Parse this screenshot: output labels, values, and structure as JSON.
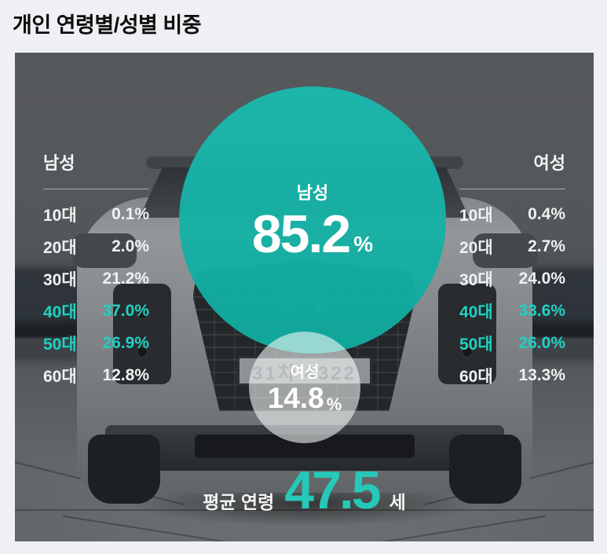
{
  "page": {
    "title": "개인 연령별/성별 비중"
  },
  "colors": {
    "accent_teal_text": "#1fd2c2",
    "male_circle_teal": "#14b1a5",
    "average_teal": "#25c8b9",
    "page_background": "#eef0f3"
  },
  "male": {
    "header": "남성",
    "rows": [
      {
        "age": "10대",
        "value": "0.1%",
        "highlight": false
      },
      {
        "age": "20대",
        "value": "2.0%",
        "highlight": false
      },
      {
        "age": "30대",
        "value": "21.2%",
        "highlight": false
      },
      {
        "age": "40대",
        "value": "37.0%",
        "highlight": true
      },
      {
        "age": "50대",
        "value": "26.9%",
        "highlight": true
      },
      {
        "age": "60대",
        "value": "12.8%",
        "highlight": false
      }
    ]
  },
  "female": {
    "header": "여성",
    "rows": [
      {
        "age": "10대",
        "value": "0.4%",
        "highlight": false
      },
      {
        "age": "20대",
        "value": "2.7%",
        "highlight": false
      },
      {
        "age": "30대",
        "value": "24.0%",
        "highlight": false
      },
      {
        "age": "40대",
        "value": "33.6%",
        "highlight": true
      },
      {
        "age": "50대",
        "value": "26.0%",
        "highlight": true
      },
      {
        "age": "60대",
        "value": "13.3%",
        "highlight": false
      }
    ]
  },
  "share": {
    "male_label": "남성",
    "male_value": "85.2",
    "male_unit": "%",
    "female_label": "여성",
    "female_value": "14.8",
    "female_unit": "%"
  },
  "average": {
    "label": "평균 연령",
    "value": "47.5",
    "unit": "세"
  },
  "scene": {
    "license_plate": "31차 4322"
  },
  "chart_data": {
    "type": "table",
    "title": "개인 연령별/성별 비중",
    "categories": [
      "10대",
      "20대",
      "30대",
      "40대",
      "50대",
      "60대"
    ],
    "series": [
      {
        "name": "남성",
        "values": [
          0.1,
          2.0,
          21.2,
          37.0,
          26.9,
          12.8
        ]
      },
      {
        "name": "여성",
        "values": [
          0.4,
          2.7,
          24.0,
          33.6,
          26.0,
          13.3
        ]
      }
    ],
    "gender_share_pct": {
      "남성": 85.2,
      "여성": 14.8
    },
    "average_age": 47.5,
    "highlighted_age_groups": [
      "40대",
      "50대"
    ],
    "units": "%",
    "legend_position": "left-right columns",
    "grid": false
  }
}
